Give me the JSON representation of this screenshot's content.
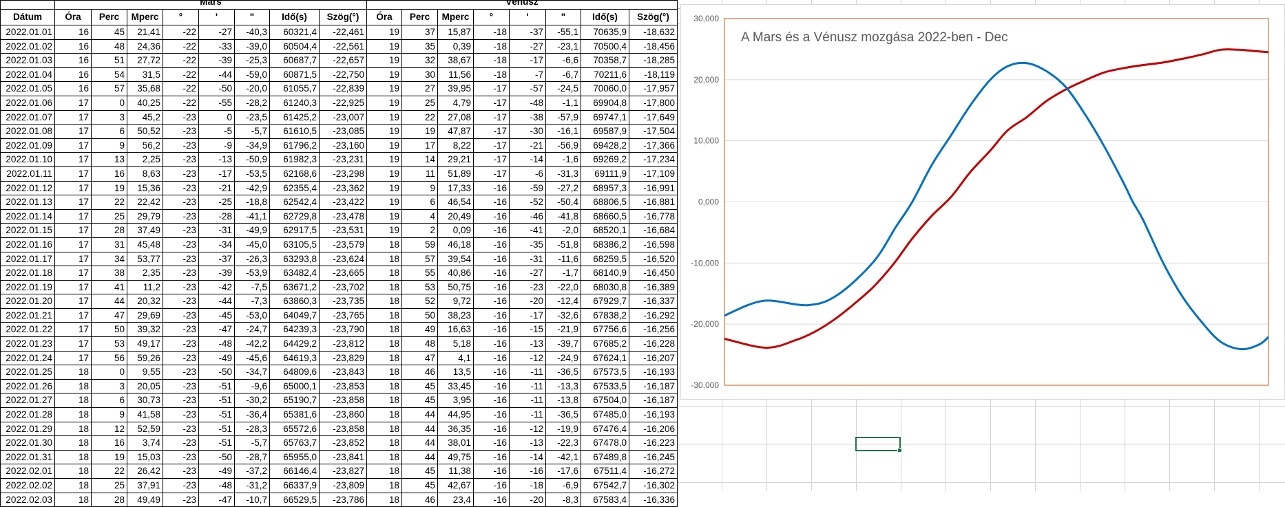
{
  "table": {
    "group_headers": {
      "mars": "Mars",
      "venus": "Vénusz"
    },
    "columns": [
      "Dátum",
      "Óra",
      "Perc",
      "Mperc",
      "°",
      "'",
      "\"",
      "Idő(s)",
      "Szög(°)",
      "Óra",
      "Perc",
      "Mperc",
      "°",
      "'",
      "\"",
      "Idő(s)",
      "Szög(°)"
    ],
    "rows": [
      [
        "2022.01.01",
        "16",
        "45",
        "21,41",
        "-22",
        "-27",
        "-40,3",
        "60321,4",
        "-22,461",
        "19",
        "37",
        "15,87",
        "-18",
        "-37",
        "-55,1",
        "70635,9",
        "-18,632"
      ],
      [
        "2022.01.02",
        "16",
        "48",
        "24,36",
        "-22",
        "-33",
        "-39,0",
        "60504,4",
        "-22,561",
        "19",
        "35",
        "0,39",
        "-18",
        "-27",
        "-23,1",
        "70500,4",
        "-18,456"
      ],
      [
        "2022.01.03",
        "16",
        "51",
        "27,72",
        "-22",
        "-39",
        "-25,3",
        "60687,7",
        "-22,657",
        "19",
        "32",
        "38,67",
        "-18",
        "-17",
        "-6,6",
        "70358,7",
        "-18,285"
      ],
      [
        "2022.01.04",
        "16",
        "54",
        "31,5",
        "-22",
        "-44",
        "-59,0",
        "60871,5",
        "-22,750",
        "19",
        "30",
        "11,56",
        "-18",
        "-7",
        "-6,7",
        "70211,6",
        "-18,119"
      ],
      [
        "2022.01.05",
        "16",
        "57",
        "35,68",
        "-22",
        "-50",
        "-20,0",
        "61055,7",
        "-22,839",
        "19",
        "27",
        "39,95",
        "-17",
        "-57",
        "-24,5",
        "70060,0",
        "-17,957"
      ],
      [
        "2022.01.06",
        "17",
        "0",
        "40,25",
        "-22",
        "-55",
        "-28,2",
        "61240,3",
        "-22,925",
        "19",
        "25",
        "4,79",
        "-17",
        "-48",
        "-1,1",
        "69904,8",
        "-17,800"
      ],
      [
        "2022.01.07",
        "17",
        "3",
        "45,2",
        "-23",
        "0",
        "-23,5",
        "61425,2",
        "-23,007",
        "19",
        "22",
        "27,08",
        "-17",
        "-38",
        "-57,9",
        "69747,1",
        "-17,649"
      ],
      [
        "2022.01.08",
        "17",
        "6",
        "50,52",
        "-23",
        "-5",
        "-5,7",
        "61610,5",
        "-23,085",
        "19",
        "19",
        "47,87",
        "-17",
        "-30",
        "-16,1",
        "69587,9",
        "-17,504"
      ],
      [
        "2022.01.09",
        "17",
        "9",
        "56,2",
        "-23",
        "-9",
        "-34,9",
        "61796,2",
        "-23,160",
        "19",
        "17",
        "8,22",
        "-17",
        "-21",
        "-56,9",
        "69428,2",
        "-17,366"
      ],
      [
        "2022.01.10",
        "17",
        "13",
        "2,25",
        "-23",
        "-13",
        "-50,9",
        "61982,3",
        "-23,231",
        "19",
        "14",
        "29,21",
        "-17",
        "-14",
        "-1,6",
        "69269,2",
        "-17,234"
      ],
      [
        "2022.01.11",
        "17",
        "16",
        "8,63",
        "-23",
        "-17",
        "-53,5",
        "62168,6",
        "-23,298",
        "19",
        "11",
        "51,89",
        "-17",
        "-6",
        "-31,3",
        "69111,9",
        "-17,109"
      ],
      [
        "2022.01.12",
        "17",
        "19",
        "15,36",
        "-23",
        "-21",
        "-42,9",
        "62355,4",
        "-23,362",
        "19",
        "9",
        "17,33",
        "-16",
        "-59",
        "-27,2",
        "68957,3",
        "-16,991"
      ],
      [
        "2022.01.13",
        "17",
        "22",
        "22,42",
        "-23",
        "-25",
        "-18,8",
        "62542,4",
        "-23,422",
        "19",
        "6",
        "46,54",
        "-16",
        "-52",
        "-50,4",
        "68806,5",
        "-16,881"
      ],
      [
        "2022.01.14",
        "17",
        "25",
        "29,79",
        "-23",
        "-28",
        "-41,1",
        "62729,8",
        "-23,478",
        "19",
        "4",
        "20,49",
        "-16",
        "-46",
        "-41,8",
        "68660,5",
        "-16,778"
      ],
      [
        "2022.01.15",
        "17",
        "28",
        "37,49",
        "-23",
        "-31",
        "-49,9",
        "62917,5",
        "-23,531",
        "19",
        "2",
        "0,09",
        "-16",
        "-41",
        "-2,0",
        "68520,1",
        "-16,684"
      ],
      [
        "2022.01.16",
        "17",
        "31",
        "45,48",
        "-23",
        "-34",
        "-45,0",
        "63105,5",
        "-23,579",
        "18",
        "59",
        "46,18",
        "-16",
        "-35",
        "-51,8",
        "68386,2",
        "-16,598"
      ],
      [
        "2022.01.17",
        "17",
        "34",
        "53,77",
        "-23",
        "-37",
        "-26,3",
        "63293,8",
        "-23,624",
        "18",
        "57",
        "39,54",
        "-16",
        "-31",
        "-11,6",
        "68259,5",
        "-16,520"
      ],
      [
        "2022.01.18",
        "17",
        "38",
        "2,35",
        "-23",
        "-39",
        "-53,9",
        "63482,4",
        "-23,665",
        "18",
        "55",
        "40,86",
        "-16",
        "-27",
        "-1,7",
        "68140,9",
        "-16,450"
      ],
      [
        "2022.01.19",
        "17",
        "41",
        "11,2",
        "-23",
        "-42",
        "-7,5",
        "63671,2",
        "-23,702",
        "18",
        "53",
        "50,75",
        "-16",
        "-23",
        "-22,0",
        "68030,8",
        "-16,389"
      ],
      [
        "2022.01.20",
        "17",
        "44",
        "20,32",
        "-23",
        "-44",
        "-7,3",
        "63860,3",
        "-23,735",
        "18",
        "52",
        "9,72",
        "-16",
        "-20",
        "-12,4",
        "67929,7",
        "-16,337"
      ],
      [
        "2022.01.21",
        "17",
        "47",
        "29,69",
        "-23",
        "-45",
        "-53,0",
        "64049,7",
        "-23,765",
        "18",
        "50",
        "38,23",
        "-16",
        "-17",
        "-32,6",
        "67838,2",
        "-16,292"
      ],
      [
        "2022.01.22",
        "17",
        "50",
        "39,32",
        "-23",
        "-47",
        "-24,7",
        "64239,3",
        "-23,790",
        "18",
        "49",
        "16,63",
        "-16",
        "-15",
        "-21,9",
        "67756,6",
        "-16,256"
      ],
      [
        "2022.01.23",
        "17",
        "53",
        "49,17",
        "-23",
        "-48",
        "-42,2",
        "64429,2",
        "-23,812",
        "18",
        "48",
        "5,18",
        "-16",
        "-13",
        "-39,7",
        "67685,2",
        "-16,228"
      ],
      [
        "2022.01.24",
        "17",
        "56",
        "59,26",
        "-23",
        "-49",
        "-45,6",
        "64619,3",
        "-23,829",
        "18",
        "47",
        "4,1",
        "-16",
        "-12",
        "-24,9",
        "67624,1",
        "-16,207"
      ],
      [
        "2022.01.25",
        "18",
        "0",
        "9,55",
        "-23",
        "-50",
        "-34,7",
        "64809,6",
        "-23,843",
        "18",
        "46",
        "13,5",
        "-16",
        "-11",
        "-36,5",
        "67573,5",
        "-16,193"
      ],
      [
        "2022.01.26",
        "18",
        "3",
        "20,05",
        "-23",
        "-51",
        "-9,6",
        "65000,1",
        "-23,853",
        "18",
        "45",
        "33,45",
        "-16",
        "-11",
        "-13,3",
        "67533,5",
        "-16,187"
      ],
      [
        "2022.01.27",
        "18",
        "6",
        "30,73",
        "-23",
        "-51",
        "-30,2",
        "65190,7",
        "-23,858",
        "18",
        "45",
        "3,95",
        "-16",
        "-11",
        "-13,8",
        "67504,0",
        "-16,187"
      ],
      [
        "2022.01.28",
        "18",
        "9",
        "41,58",
        "-23",
        "-51",
        "-36,4",
        "65381,6",
        "-23,860",
        "18",
        "44",
        "44,95",
        "-16",
        "-11",
        "-36,5",
        "67485,0",
        "-16,193"
      ],
      [
        "2022.01.29",
        "18",
        "12",
        "52,59",
        "-23",
        "-51",
        "-28,3",
        "65572,6",
        "-23,858",
        "18",
        "44",
        "36,35",
        "-16",
        "-12",
        "-19,9",
        "67476,4",
        "-16,206"
      ],
      [
        "2022.01.30",
        "18",
        "16",
        "3,74",
        "-23",
        "-51",
        "-5,7",
        "65763,7",
        "-23,852",
        "18",
        "44",
        "38,01",
        "-16",
        "-13",
        "-22,3",
        "67478,0",
        "-16,223"
      ],
      [
        "2022.01.31",
        "18",
        "19",
        "15,03",
        "-23",
        "-50",
        "-28,7",
        "65955,0",
        "-23,841",
        "18",
        "44",
        "49,75",
        "-16",
        "-14",
        "-42,1",
        "67489,8",
        "-16,245"
      ],
      [
        "2022.02.01",
        "18",
        "22",
        "26,42",
        "-23",
        "-49",
        "-37,2",
        "66146,4",
        "-23,827",
        "18",
        "45",
        "11,38",
        "-16",
        "-16",
        "-17,6",
        "67511,4",
        "-16,272"
      ],
      [
        "2022.02.02",
        "18",
        "25",
        "37,91",
        "-23",
        "-48",
        "-31,2",
        "66337,9",
        "-23,809",
        "18",
        "45",
        "42,67",
        "-16",
        "-18",
        "-6,9",
        "67542,7",
        "-16,302"
      ],
      [
        "2022.02.03",
        "18",
        "28",
        "49,49",
        "-23",
        "-47",
        "-10,7",
        "66529,5",
        "-23,786",
        "18",
        "46",
        "23,4",
        "-16",
        "-20",
        "-8,3",
        "67583,4",
        "-16,336"
      ]
    ]
  },
  "chart_data": {
    "type": "line",
    "title": "A Mars és a Vénusz mozgása 2022-ben - Dec",
    "xlabel": "",
    "ylabel": "",
    "xlim": [
      0,
      365
    ],
    "ylim": [
      -30,
      30
    ],
    "yticks": [
      "30,000",
      "20,000",
      "10,000",
      "0,000",
      "-10,000",
      "-20,000",
      "-30,000"
    ],
    "ytick_values": [
      30,
      20,
      10,
      0,
      -10,
      -20,
      -30
    ],
    "grid": true,
    "legend": "none",
    "series": [
      {
        "name": "Mars",
        "color": "#c00000",
        "x": [
          0,
          28,
          48,
          61,
          74,
          87,
          100,
          113,
          126,
          139,
          152,
          165,
          178,
          190,
          203,
          216,
          229,
          242,
          255,
          268,
          281,
          294,
          307,
          320,
          333,
          345,
          355,
          365
        ],
        "y": [
          -22.4,
          -23.86,
          -22.6,
          -21.2,
          -19.2,
          -16.7,
          -13.9,
          -10.3,
          -6.0,
          -2.3,
          0.8,
          4.9,
          8.3,
          11.7,
          13.9,
          16.5,
          18.4,
          19.9,
          21.2,
          21.9,
          22.4,
          22.8,
          23.4,
          24.1,
          24.9,
          24.9,
          24.7,
          24.5
        ]
      },
      {
        "name": "Vénusz",
        "color": "#0070c0",
        "x": [
          0,
          26,
          56,
          76,
          100,
          115,
          126,
          139,
          152,
          165,
          178,
          190,
          203,
          216,
          229,
          242,
          255,
          268,
          274,
          281,
          294,
          307,
          320,
          333,
          347,
          359,
          365
        ],
        "y": [
          -18.6,
          -16.19,
          -16.9,
          -15.2,
          -9.8,
          -4.1,
          0,
          6,
          10.9,
          15.8,
          19.9,
          22.2,
          22.7,
          21.4,
          18.8,
          14.3,
          9,
          3,
          0,
          -3,
          -9.8,
          -15.4,
          -19.6,
          -22.9,
          -24.1,
          -23.3,
          -22.1
        ]
      }
    ]
  }
}
